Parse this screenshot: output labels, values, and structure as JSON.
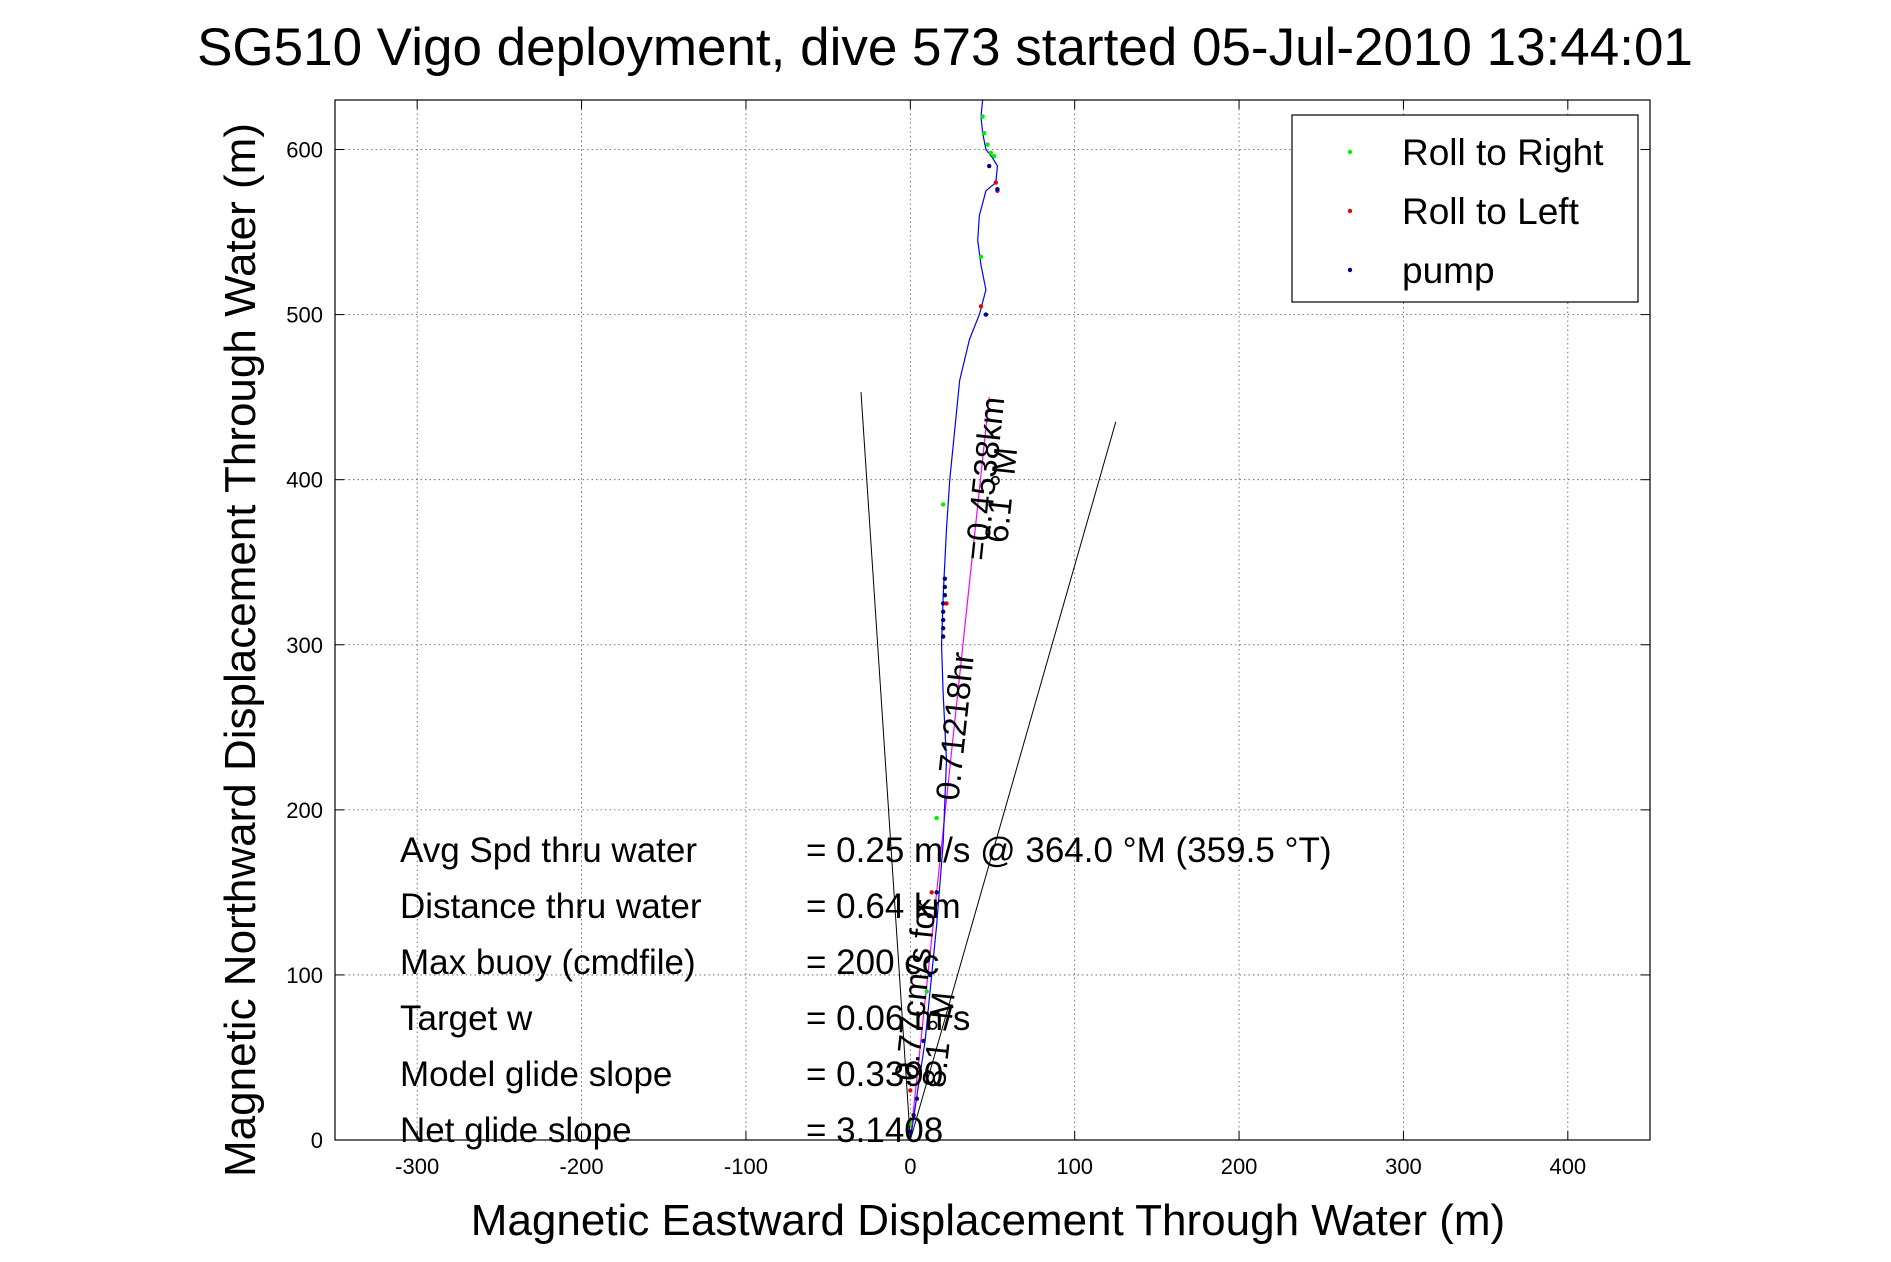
{
  "chart_data": {
    "type": "line",
    "title": "SG510 Vigo deployment, dive 573 started 05-Jul-2010 13:44:01",
    "xlabel": "Magnetic Eastward Displacement Through Water (m)",
    "ylabel": "Magnetic Northward Displacement Through Water (m)",
    "xlim": [
      -350,
      450
    ],
    "ylim": [
      0,
      630
    ],
    "xticks": [
      -300,
      -200,
      -100,
      0,
      100,
      200,
      300,
      400
    ],
    "yticks": [
      0,
      100,
      200,
      300,
      400,
      500,
      600
    ],
    "xtick_labels": [
      "-300",
      "-200",
      "-100",
      "0",
      "100",
      "200",
      "300",
      "400"
    ],
    "ytick_labels": [
      "0",
      "100",
      "200",
      "300",
      "400",
      "500",
      "600"
    ],
    "grid": true,
    "legend": {
      "placement": "top-right",
      "entries": [
        {
          "label": "Roll to Right",
          "color": "#00ee00"
        },
        {
          "label": "Roll to Left",
          "color": "#ee0000"
        },
        {
          "label": "pump",
          "color": "#000080"
        }
      ]
    },
    "track": {
      "color": "#0000ff",
      "x": [
        0,
        3,
        6,
        9,
        12,
        16,
        20,
        22,
        20,
        19,
        20,
        22,
        24,
        27,
        30,
        36,
        42,
        46,
        43,
        41,
        42,
        46,
        52,
        53,
        50,
        46,
        44,
        43,
        44
      ],
      "y": [
        0,
        20,
        40,
        60,
        90,
        130,
        180,
        230,
        270,
        300,
        330,
        370,
        400,
        430,
        460,
        485,
        500,
        515,
        530,
        545,
        560,
        575,
        580,
        590,
        595,
        600,
        610,
        620,
        630
      ]
    },
    "roll_right_points": {
      "x": [
        0,
        10,
        16,
        20,
        43,
        44,
        45,
        47,
        49,
        51
      ],
      "y": [
        10,
        90,
        195,
        385,
        535,
        620,
        610,
        603,
        598,
        596
      ]
    },
    "roll_left_points": {
      "x": [
        0,
        13,
        22,
        43,
        53,
        52
      ],
      "y": [
        30,
        150,
        325,
        505,
        575,
        580
      ]
    },
    "pump_points": {
      "x": [
        0,
        2,
        4,
        8,
        12,
        16,
        20,
        20,
        20,
        20,
        20,
        21,
        21,
        21,
        46,
        53,
        48
      ],
      "y": [
        5,
        15,
        25,
        60,
        100,
        150,
        305,
        310,
        315,
        320,
        325,
        330,
        335,
        340,
        500,
        576,
        590
      ]
    },
    "cone_lines": {
      "color": "#000000",
      "lines": [
        {
          "x": [
            0,
            -30
          ],
          "y": [
            0,
            453
          ]
        },
        {
          "x": [
            0,
            125
          ],
          "y": [
            0,
            435
          ]
        }
      ]
    },
    "heading_line": {
      "color": "#ff00ff",
      "x": [
        0,
        48
      ],
      "y": [
        0,
        450
      ]
    },
    "annotations": [
      {
        "text": "=0.4538km",
        "x": 52,
        "y": 400,
        "angle": -84
      },
      {
        "text": "6.1 °M",
        "x": 62,
        "y": 390,
        "angle": -84
      },
      {
        "text": "0.71218hr",
        "x": 34,
        "y": 250,
        "angle": -84
      },
      {
        "text": "0.77cm/s for",
        "x": 10,
        "y": 90,
        "angle": -84
      },
      {
        "text": "8.1 °M",
        "x": 24,
        "y": 60,
        "angle": -84
      }
    ],
    "stats": [
      {
        "label": "Avg Spd thru water",
        "value": "=  0.25 m/s @ 364.0 °M (359.5 °T)"
      },
      {
        "label": "Distance thru water",
        "value": "=  0.64 km"
      },
      {
        "label": "Max buoy (cmdfile)",
        "value": "= 200 cc"
      },
      {
        "label": "Target w",
        "value": "= 0.06 m/s"
      },
      {
        "label": "Model glide slope",
        "value": "= 0.3390"
      },
      {
        "label": "Net glide slope",
        "value": "= 3.1408"
      }
    ]
  }
}
